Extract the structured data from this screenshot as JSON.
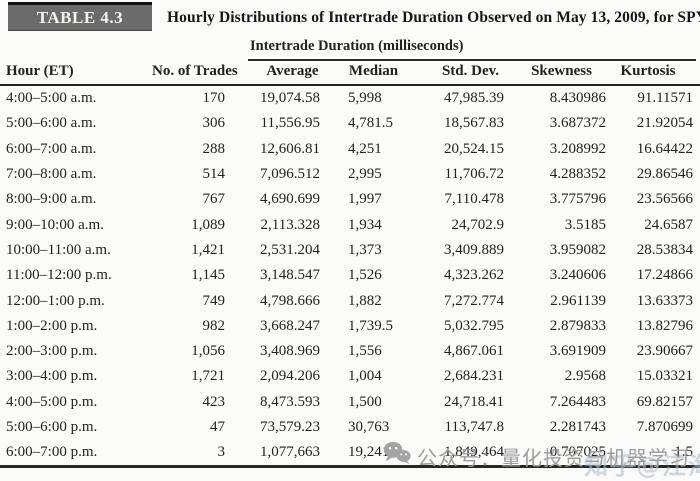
{
  "table": {
    "tag": "TABLE 4.3",
    "title": "Hourly Distributions of Intertrade Duration Observed on May 13, 2009, for SPY",
    "span_header": "Intertrade Duration (milliseconds)",
    "columns": [
      "Hour (ET)",
      "No. of Trades",
      "Average",
      "Median",
      "Std. Dev.",
      "Skewness",
      "Kurtosis"
    ],
    "rows": [
      [
        "4:00–5:00 a.m.",
        "170",
        "19,074.58",
        "5,998",
        "47,985.39",
        "8.430986",
        "91.11571"
      ],
      [
        "5:00–6:00 a.m.",
        "306",
        "11,556.95",
        "4,781.5",
        "18,567.83",
        "3.687372",
        "21.92054"
      ],
      [
        "6:00–7:00 a.m.",
        "288",
        "12,606.81",
        "4,251",
        "20,524.15",
        "3.208992",
        "16.64422"
      ],
      [
        "7:00–8:00 a.m.",
        "514",
        "7,096.512",
        "2,995",
        "11,706.72",
        "4.288352",
        "29.86546"
      ],
      [
        "8:00–9:00 a.m.",
        "767",
        "4,690.699",
        "1,997",
        "7,110.478",
        "3.775796",
        "23.56566"
      ],
      [
        "9:00–10:00 a.m.",
        "1,089",
        "2,113.328",
        "1,934",
        "24,702.9",
        "3.5185",
        "24.6587"
      ],
      [
        "10:00–11:00 a.m.",
        "1,421",
        "2,531.204",
        "1,373",
        "3,409.889",
        "3.959082",
        "28.53834"
      ],
      [
        "11:00–12:00 p.m.",
        "1,145",
        "3,148.547",
        "1,526",
        "4,323.262",
        "3.240606",
        "17.24866"
      ],
      [
        "12:00–1:00 p.m.",
        "749",
        "4,798.666",
        "1,882",
        "7,272.774",
        "2.961139",
        "13.63373"
      ],
      [
        "1:00–2:00 p.m.",
        "982",
        "3,668.247",
        "1,739.5",
        "5,032.795",
        "2.879833",
        "13.82796"
      ],
      [
        "2:00–3:00 p.m.",
        "1,056",
        "3,408.969",
        "1,556",
        "4,867.061",
        "3.691909",
        "23.90667"
      ],
      [
        "3:00–4:00 p.m.",
        "1,721",
        "2,094.206",
        "1,004",
        "2,684.231",
        "2.9568",
        "15.03321"
      ],
      [
        "4:00–5:00 p.m.",
        "423",
        "8,473.593",
        "1,500",
        "24,718.41",
        "7.264483",
        "69.82157"
      ],
      [
        "5:00–6:00 p.m.",
        "47",
        "73,579.23",
        "30,763",
        "113,747.8",
        "2.281743",
        "7.870699"
      ],
      [
        "6:00–7:00 p.m.",
        "3",
        "1,077,663",
        "19,241",
        "1,849,464",
        "0.707025",
        "1.5"
      ]
    ]
  },
  "watermarks": {
    "wechat_text": "公众号：量化投资与机器学习",
    "overlay_text": "知乎@江海",
    "icon": "wechat-icon"
  },
  "colors": {
    "tag_background": "#6b6b6b",
    "tag_text": "#f5f3ec",
    "body_text": "#1d1d1d",
    "rule": "#262626",
    "watermark_gray": "#9d9d9d",
    "watermark_light": "#acc0ce",
    "page_background": "#fbfbfa"
  }
}
